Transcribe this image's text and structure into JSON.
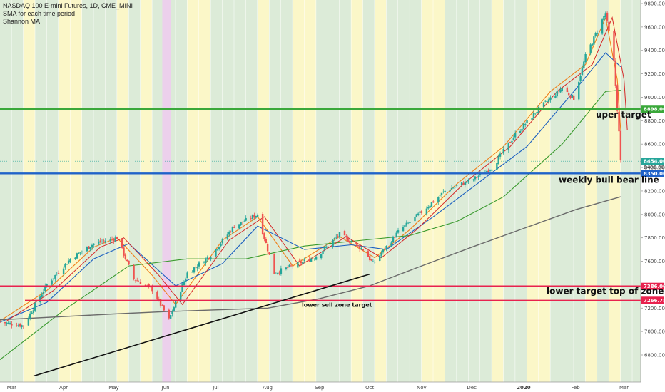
{
  "legend": {
    "title": "NASDAQ 100 E-mini Futures, 1D, CME_MINI",
    "line2": "SMA for each time period",
    "line3": "Shannon MA"
  },
  "colors": {
    "up_candle": "#26a69a",
    "down_candle": "#ef5350",
    "band_green": "#dcebd8",
    "band_yellow": "#fbf7c8",
    "band_pink": "#ecd0ec",
    "hline_green": "#3aa83a",
    "hline_blue": "#1f62c9",
    "hline_red": "#e8224e",
    "ma_orange": "#ef7f1a",
    "ma_red": "#d62828",
    "ma_blue": "#1b5fc0",
    "ma_green": "#3a9a2e",
    "ma_grey": "#6b6b6b"
  },
  "chart_data": {
    "type": "line",
    "subtype": "candlestick",
    "title": "NASDAQ 100 E-mini Futures, 1D, CME_MINI",
    "y_axis": {
      "position": "right",
      "ticks": [
        6800,
        7000,
        7200,
        7400,
        7600,
        7800,
        8000,
        8200,
        8400,
        8600,
        8800,
        9000,
        9200,
        9400,
        9600,
        9800
      ],
      "tick_labels": [
        "6800.00",
        "7000.00",
        "7200.00",
        "7400.00",
        "7600.00",
        "7800.00",
        "8000.00",
        "8200.00",
        "8400.00",
        "8600.00",
        "8800.00",
        "9000.00",
        "9200.00",
        "9400.00",
        "9600.00",
        "9800.00"
      ],
      "ylim": [
        6620,
        9810
      ]
    },
    "x_axis": {
      "tick_labels": [
        "Mar",
        "Apr",
        "May",
        "Jun",
        "Jul",
        "Aug",
        "Sep",
        "Oct",
        "Nov",
        "Dec",
        "2020",
        "Feb",
        "Mar"
      ],
      "tick_dates": [
        "2019-03-01",
        "2019-04-01",
        "2019-05-01",
        "2019-06-01",
        "2019-07-01",
        "2019-08-01",
        "2019-09-01",
        "2019-10-01",
        "2019-11-01",
        "2019-12-01",
        "2020-01-01",
        "2020-02-01",
        "2020-03-01"
      ],
      "xlim": [
        "2019-02-22",
        "2020-03-11"
      ]
    },
    "grid": false,
    "price_close_series": {
      "name": "",
      "dates": [
        "2019-02-22",
        "2019-03-08",
        "2019-03-22",
        "2019-04-05",
        "2019-04-19",
        "2019-05-03",
        "2019-05-13",
        "2019-05-24",
        "2019-06-03",
        "2019-06-14",
        "2019-06-28",
        "2019-07-12",
        "2019-07-26",
        "2019-08-05",
        "2019-08-16",
        "2019-08-30",
        "2019-09-13",
        "2019-09-27",
        "2019-10-03",
        "2019-10-18",
        "2019-11-01",
        "2019-11-15",
        "2019-12-02",
        "2019-12-13",
        "2019-12-27",
        "2020-01-10",
        "2020-01-24",
        "2020-01-31",
        "2020-02-07",
        "2020-02-19",
        "2020-02-24",
        "2020-02-27",
        "2020-02-28"
      ],
      "values": [
        7080,
        7050,
        7400,
        7620,
        7750,
        7800,
        7450,
        7360,
        7100,
        7500,
        7650,
        7900,
        8000,
        7500,
        7560,
        7640,
        7830,
        7700,
        7580,
        7850,
        8020,
        8200,
        8300,
        8400,
        8680,
        8900,
        9080,
        8990,
        9350,
        9720,
        9300,
        8700,
        8450
      ]
    },
    "moving_averages": [
      {
        "name": "",
        "color": "#ef7f1a",
        "period_hint": "fast",
        "dates": [
          "2019-02-22",
          "2019-03-22",
          "2019-04-19",
          "2019-05-03",
          "2019-05-24",
          "2019-06-07",
          "2019-07-05",
          "2019-07-26",
          "2019-08-16",
          "2019-09-13",
          "2019-10-04",
          "2019-10-25",
          "2019-11-22",
          "2019-12-20",
          "2020-01-17",
          "2020-02-07",
          "2020-02-19",
          "2020-02-26",
          "2020-02-28"
        ],
        "values": [
          7090,
          7350,
          7720,
          7800,
          7480,
          7230,
          7780,
          7980,
          7560,
          7810,
          7630,
          7870,
          8260,
          8580,
          9050,
          9280,
          9680,
          9150,
          8720
        ]
      },
      {
        "name": "",
        "color": "#1b5fc0",
        "period_hint": "medium",
        "dates": [
          "2019-02-22",
          "2019-03-22",
          "2019-04-19",
          "2019-05-10",
          "2019-06-07",
          "2019-07-05",
          "2019-07-26",
          "2019-08-23",
          "2019-09-20",
          "2019-10-11",
          "2019-11-08",
          "2019-12-06",
          "2020-01-03",
          "2020-01-31",
          "2020-02-19",
          "2020-02-28"
        ],
        "values": [
          7080,
          7250,
          7620,
          7750,
          7390,
          7580,
          7900,
          7700,
          7740,
          7700,
          7980,
          8280,
          8580,
          9050,
          9380,
          9260
        ]
      },
      {
        "name": "",
        "color": "#3a9a2e",
        "period_hint": "slow",
        "dates": [
          "2019-02-22",
          "2019-04-01",
          "2019-05-10",
          "2019-06-14",
          "2019-07-19",
          "2019-08-23",
          "2019-09-27",
          "2019-10-25",
          "2019-11-22",
          "2019-12-20",
          "2020-01-24",
          "2020-02-19",
          "2020-02-28"
        ],
        "values": [
          6760,
          7180,
          7560,
          7620,
          7620,
          7730,
          7780,
          7820,
          7940,
          8150,
          8600,
          9050,
          9060
        ]
      },
      {
        "name": "",
        "color": "#6b6b6b",
        "period_hint": "long",
        "dates": [
          "2019-02-22",
          "2019-05-01",
          "2019-06-01",
          "2019-08-01",
          "2019-09-01",
          "2019-10-01",
          "2019-11-01",
          "2019-12-01",
          "2020-01-01",
          "2020-02-01",
          "2020-02-28"
        ],
        "values": [
          7100,
          7150,
          7170,
          7200,
          7280,
          7390,
          7560,
          7720,
          7880,
          8040,
          8150
        ]
      }
    ],
    "horizontal_lines": [
      {
        "value": 8898.0,
        "label": "8898.00",
        "annotation": "uper target",
        "color": "#3aa83a"
      },
      {
        "value": 8350.0,
        "label": "8350.00",
        "annotation": "weekly bull bear line",
        "color": "#1f62c9"
      },
      {
        "value": 7386.0,
        "label": "7386.00",
        "annotation": "lower target top of zone",
        "color": "#e8224e"
      },
      {
        "value": 7266.75,
        "label": "7266.75",
        "annotation": "lower sell zone target",
        "color": "#e8224e"
      }
    ],
    "current_price": {
      "value": 8454.0,
      "label": "8454.00",
      "secondary_label": "8400.00"
    },
    "trendline": {
      "color": "#111111",
      "points": [
        {
          "date": "2019-03-14",
          "value": 6620
        },
        {
          "date": "2019-10-01",
          "value": 7490
        }
      ]
    }
  }
}
